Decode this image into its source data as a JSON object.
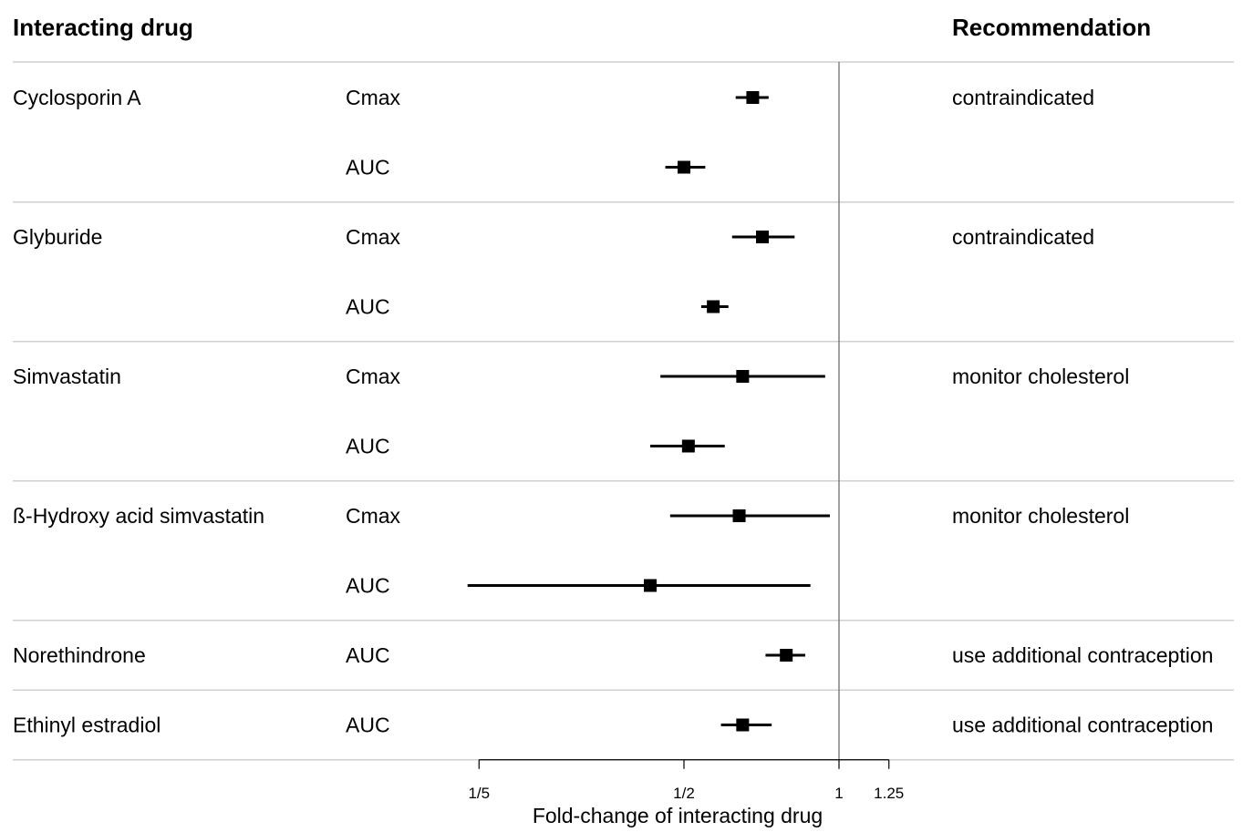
{
  "chart_data": {
    "type": "forest",
    "headers": {
      "drug": "Interacting drug",
      "recommendation": "Recommendation"
    },
    "xlabel": "Fold-change of interacting drug",
    "x_scale": "log",
    "xlim": [
      0.185,
      1.5
    ],
    "reference_line": 1,
    "ticks": [
      {
        "value": 0.2,
        "label": "1/5"
      },
      {
        "value": 0.5,
        "label": "1/2"
      },
      {
        "value": 1,
        "label": "1"
      },
      {
        "value": 1.25,
        "label": "1.25"
      }
    ],
    "groups": [
      {
        "drug": "Cyclosporin A",
        "recommendation": "contraindicated",
        "rows": [
          {
            "parameter": "Cmax",
            "estimate": 0.68,
            "lower": 0.63,
            "upper": 0.73
          },
          {
            "parameter": "AUC",
            "estimate": 0.5,
            "lower": 0.46,
            "upper": 0.55
          }
        ]
      },
      {
        "drug": "Glyburide",
        "recommendation": "contraindicated",
        "rows": [
          {
            "parameter": "Cmax",
            "estimate": 0.71,
            "lower": 0.62,
            "upper": 0.82
          },
          {
            "parameter": "AUC",
            "estimate": 0.57,
            "lower": 0.54,
            "upper": 0.61
          }
        ]
      },
      {
        "drug": "Simvastatin",
        "recommendation": "monitor cholesterol",
        "rows": [
          {
            "parameter": "Cmax",
            "estimate": 0.65,
            "lower": 0.45,
            "upper": 0.94
          },
          {
            "parameter": "AUC",
            "estimate": 0.51,
            "lower": 0.43,
            "upper": 0.6
          }
        ]
      },
      {
        "drug": "ß-Hydroxy acid simvastatin",
        "recommendation": "monitor cholesterol",
        "rows": [
          {
            "parameter": "Cmax",
            "estimate": 0.64,
            "lower": 0.47,
            "upper": 0.96
          },
          {
            "parameter": "AUC",
            "estimate": 0.43,
            "lower": 0.19,
            "upper": 0.88
          }
        ]
      },
      {
        "drug": "Norethindrone",
        "recommendation": "use additional contraception",
        "rows": [
          {
            "parameter": "AUC",
            "estimate": 0.79,
            "lower": 0.72,
            "upper": 0.86
          }
        ]
      },
      {
        "drug": "Ethinyl estradiol",
        "recommendation": "use additional contraception",
        "rows": [
          {
            "parameter": "AUC",
            "estimate": 0.65,
            "lower": 0.59,
            "upper": 0.74
          }
        ]
      }
    ]
  }
}
